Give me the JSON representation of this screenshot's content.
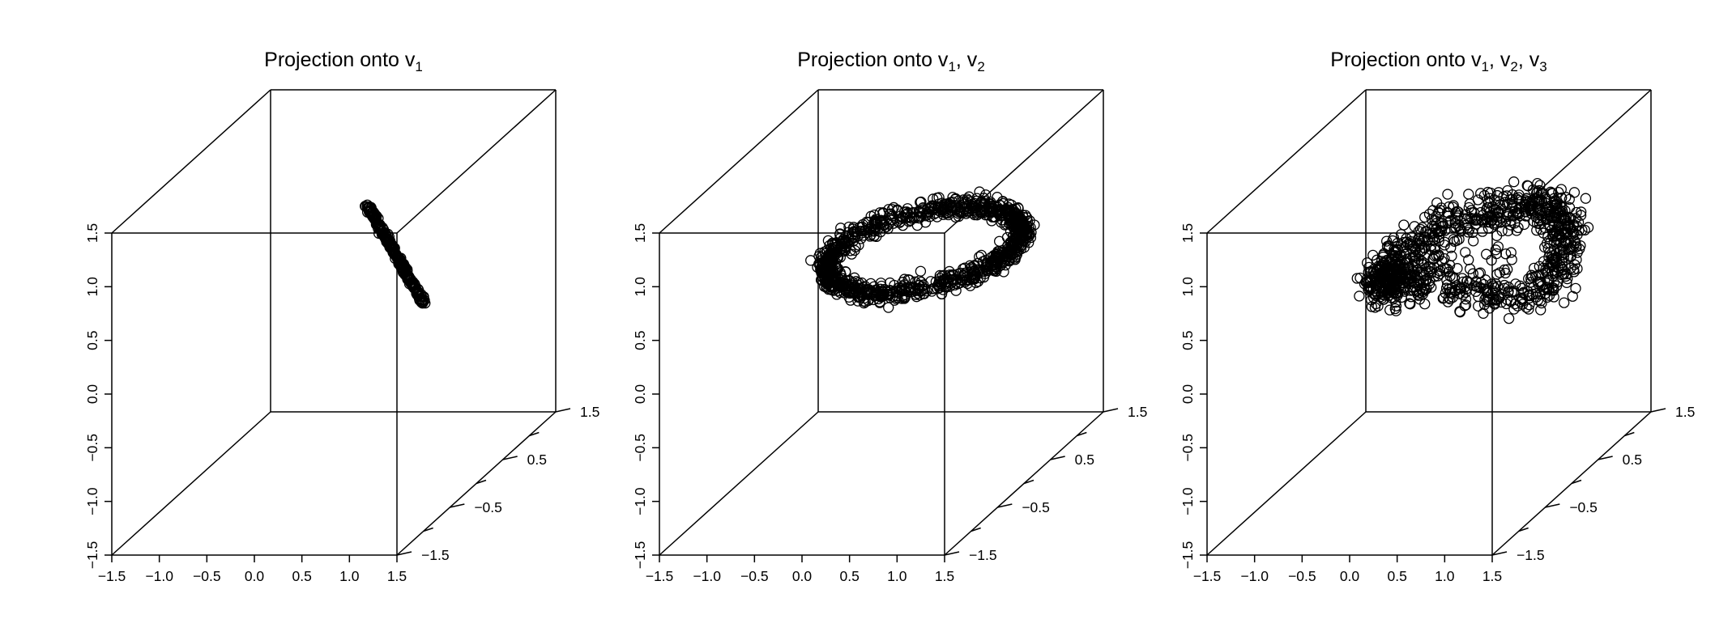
{
  "colors": {
    "background": "#ffffff",
    "ink": "#000000"
  },
  "chart_data": [
    {
      "type": "scatter",
      "projection": "3d",
      "title": "Projection onto v",
      "title_subscripts": [
        "1"
      ],
      "marker": "open-circle",
      "xlim": [
        -1.5,
        1.5
      ],
      "ylim": [
        -1.5,
        1.5
      ],
      "zlim": [
        -1.5,
        1.5
      ],
      "x_ticks": [
        "−1.5",
        "−1.0",
        "−0.5",
        "0.0",
        "0.5",
        "1.0",
        "1.5"
      ],
      "y_ticks": [
        "−1.5",
        "−1.0",
        "−0.5",
        "0.0",
        "0.5",
        "1.0",
        "1.5"
      ],
      "z_ticks": [
        "−1.5",
        "−1.0",
        "−0.5",
        "0.0",
        "0.5",
        "1.0",
        "1.5"
      ],
      "structure": {
        "shape": "segment",
        "from": [
          0.35,
          0.0,
          1.09
        ],
        "to": [
          0.95,
          0.0,
          0.18
        ]
      }
    },
    {
      "type": "scatter",
      "projection": "3d",
      "title": "Projection onto v",
      "title_subscripts": [
        "1",
        "2"
      ],
      "marker": "open-circle",
      "xlim": [
        -1.5,
        1.5
      ],
      "ylim": [
        -1.5,
        1.5
      ],
      "zlim": [
        -1.5,
        1.5
      ],
      "x_ticks": [
        "−1.5",
        "−1.0",
        "−0.5",
        "0.0",
        "0.5",
        "1.0",
        "1.5"
      ],
      "y_ticks": [
        "−1.5",
        "−1.0",
        "−0.5",
        "0.0",
        "0.5",
        "1.0",
        "1.5"
      ],
      "z_ticks": [
        "−1.5",
        "−1.0",
        "−0.5",
        "0.0",
        "0.5",
        "1.0",
        "1.5"
      ],
      "structure": {
        "shape": "ring",
        "center": [
          0.45,
          0.0,
          0.68
        ],
        "semi_axes": [
          1.05,
          0.35
        ],
        "tilt_deg": 11,
        "noise": 0.05
      }
    },
    {
      "type": "scatter",
      "projection": "3d",
      "title": "Projection onto v",
      "title_subscripts": [
        "1",
        "2",
        "3"
      ],
      "marker": "open-circle",
      "xlim": [
        -1.5,
        1.5
      ],
      "ylim": [
        -1.5,
        1.5
      ],
      "zlim": [
        -1.5,
        1.5
      ],
      "x_ticks": [
        "−1.5",
        "−1.0",
        "−0.5",
        "0.0",
        "0.5",
        "1.0",
        "1.5"
      ],
      "y_ticks": [
        "−1.5",
        "−1.0",
        "−0.5",
        "0.0",
        "0.5",
        "1.0",
        "1.5"
      ],
      "z_ticks": [
        "−1.5",
        "−1.0",
        "−0.5",
        "0.0",
        "0.5",
        "1.0",
        "1.5"
      ],
      "structure": {
        "shape": "twisted-ring",
        "center": [
          0.45,
          0.0,
          0.62
        ],
        "semi_axes": [
          1.0,
          0.35
        ],
        "tilt_deg": 12,
        "noise": 0.1
      }
    }
  ]
}
